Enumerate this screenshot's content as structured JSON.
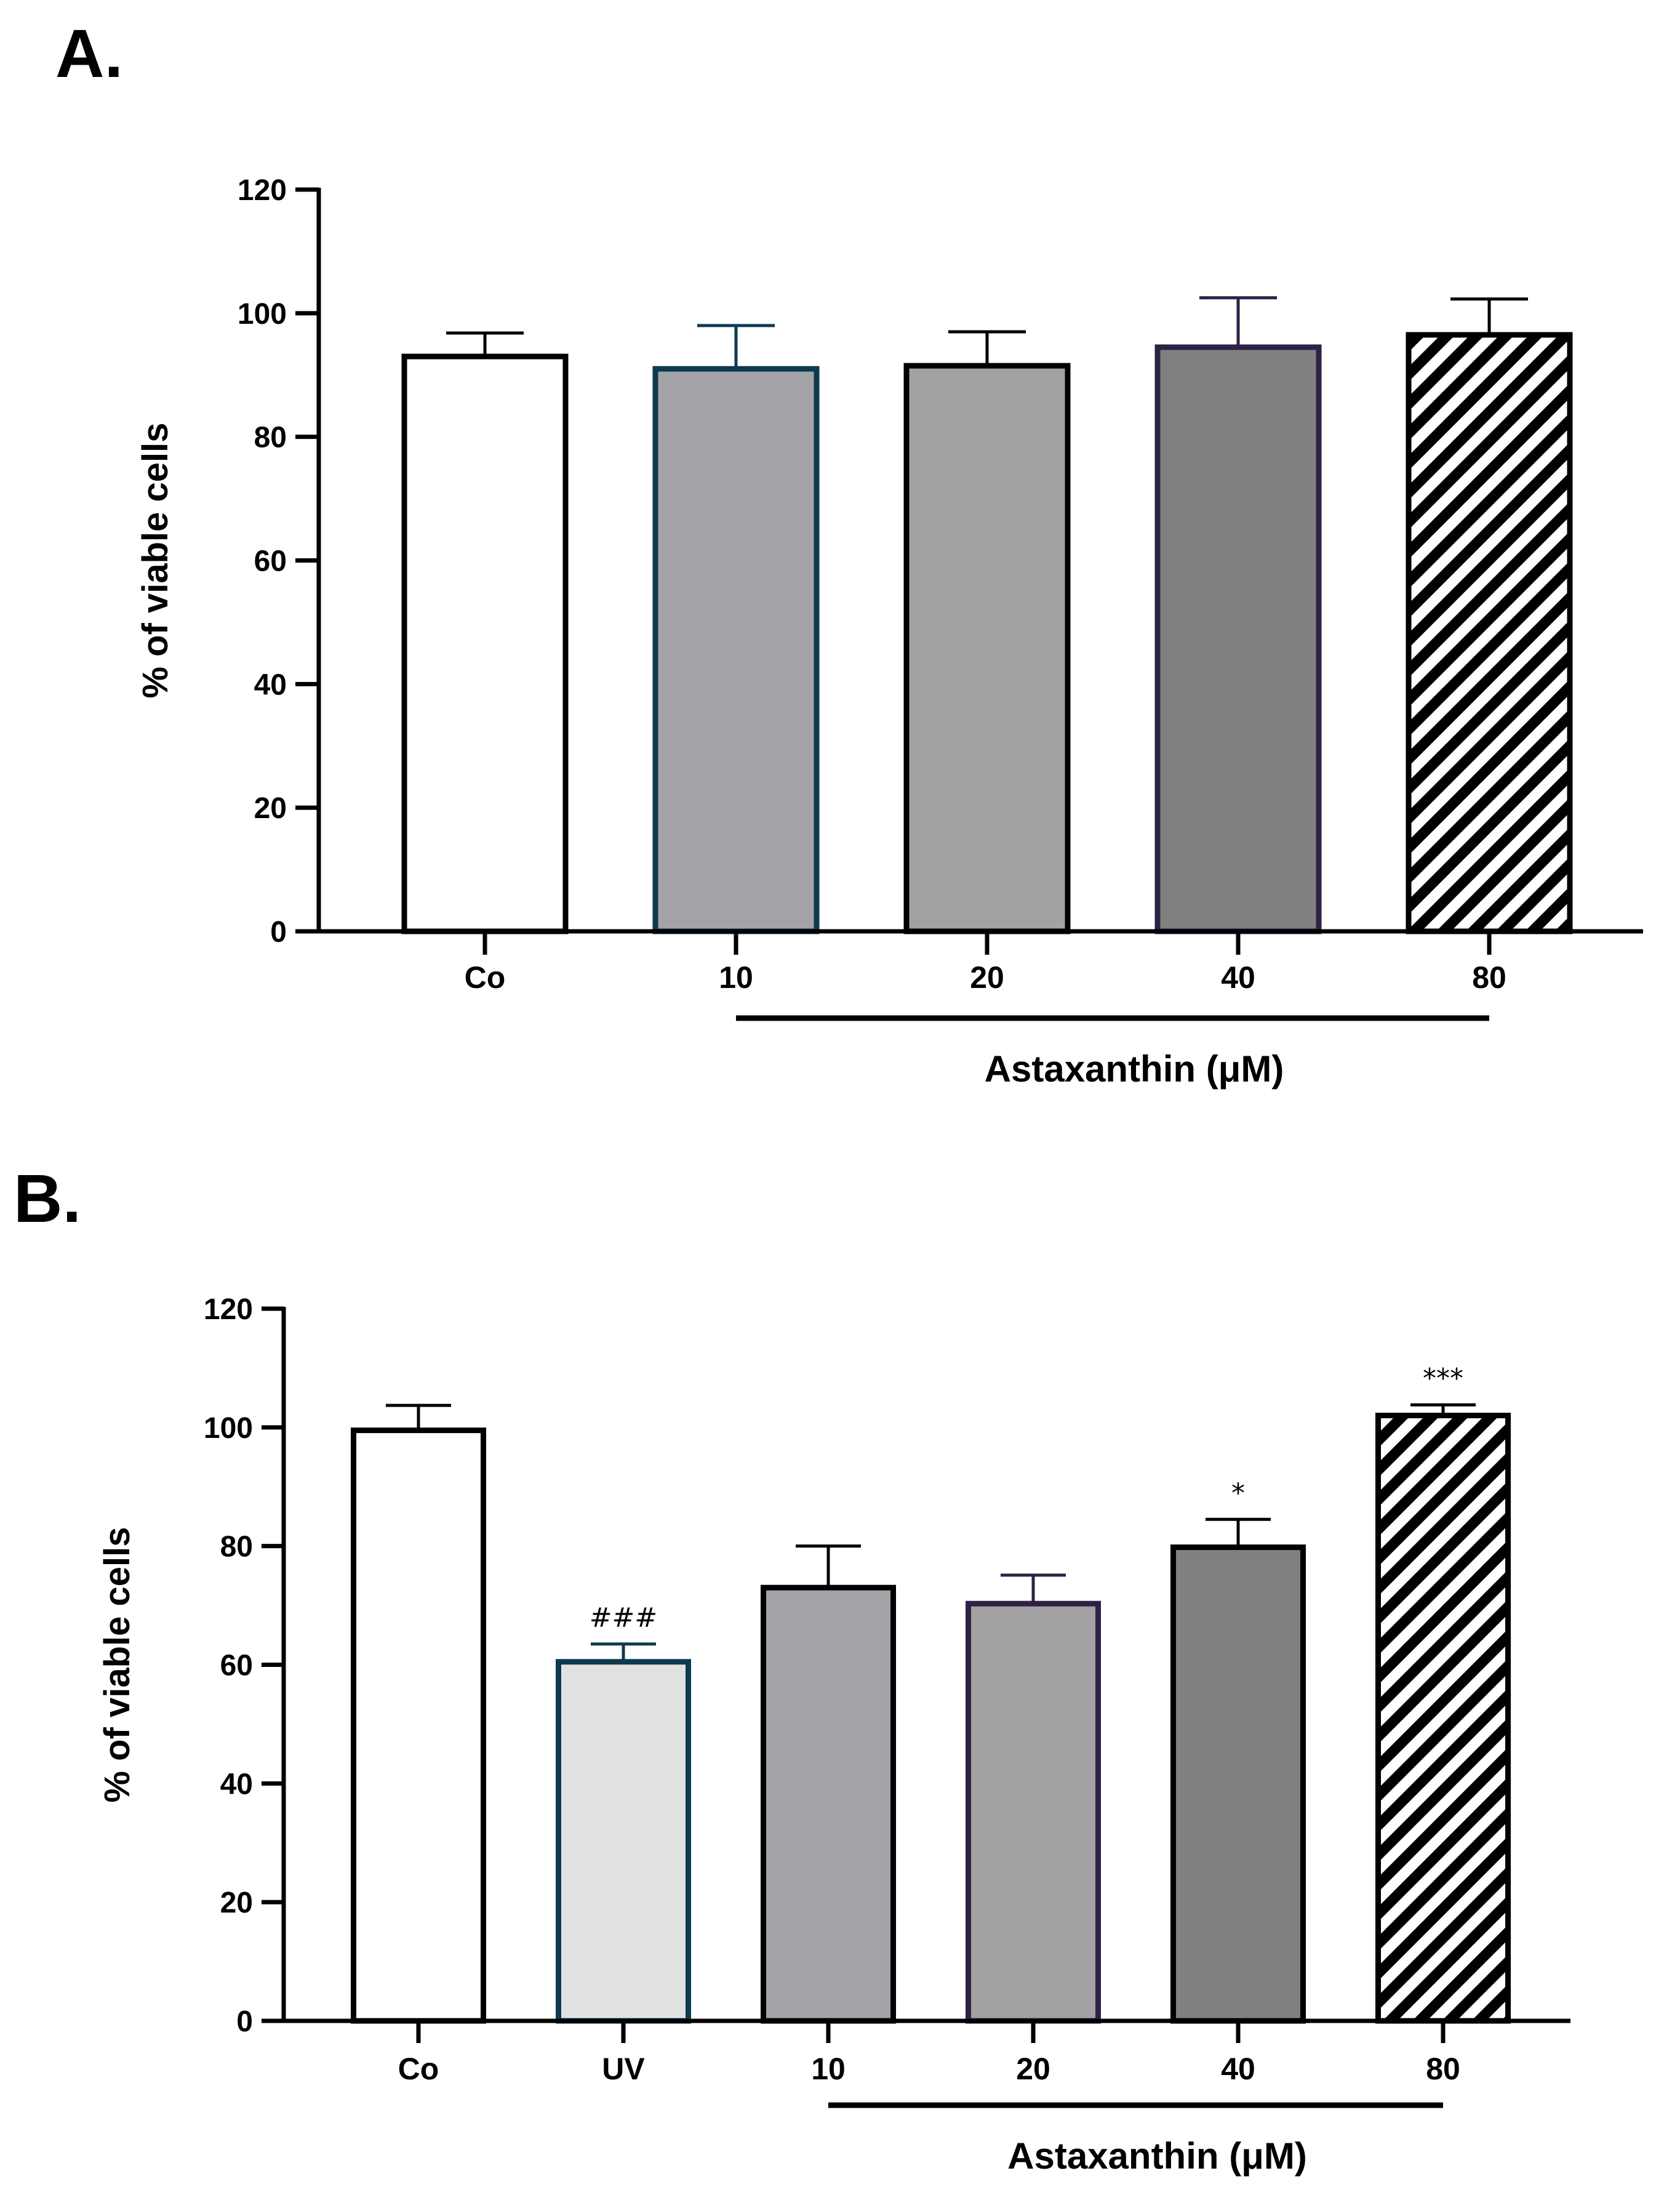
{
  "figure": {
    "panels": [
      {
        "letter": "A."
      },
      {
        "letter": "B."
      }
    ]
  },
  "chart_data": [
    {
      "type": "bar",
      "panel": "A.",
      "ylabel": "% of viable cells",
      "xlabel": "",
      "ylim": [
        0,
        120
      ],
      "yticks": [
        0,
        20,
        40,
        60,
        80,
        100,
        120
      ],
      "categories": [
        "Co",
        "10",
        "20",
        "40",
        "80"
      ],
      "values": [
        93,
        91,
        91.5,
        94.5,
        96.5
      ],
      "errors": [
        3.8,
        7,
        5.5,
        8,
        5.8
      ],
      "annotations": [
        "",
        "",
        "",
        "",
        ""
      ],
      "fills": [
        "#ffffff",
        "#a4a4a8",
        "#a2a2a2",
        "#808080",
        "hatch"
      ],
      "edges": [
        "#000000",
        "#0e3a4f",
        "#000000",
        "#2e2146",
        "#000000"
      ],
      "group": {
        "label": "Astaxanthin (μM)",
        "from": 1,
        "to": 4
      }
    },
    {
      "type": "bar",
      "panel": "B.",
      "ylabel": "% of viable cells",
      "xlabel": "",
      "ylim": [
        0,
        120
      ],
      "yticks": [
        0,
        20,
        40,
        60,
        80,
        100,
        120
      ],
      "categories": [
        "Co",
        "UV",
        "10",
        "20",
        "40",
        "80"
      ],
      "values": [
        99.5,
        60.5,
        73,
        70.3,
        79.8,
        102
      ],
      "errors": [
        4.2,
        3,
        7,
        4.8,
        4.7,
        1.8
      ],
      "annotations": [
        "",
        "###",
        "",
        "",
        "*",
        "***"
      ],
      "fills": [
        "#ffffff",
        "#e2e2e2",
        "#a4a4a8",
        "#a2a2a2",
        "#808080",
        "hatch"
      ],
      "edges": [
        "#000000",
        "#0e3a4f",
        "#000000",
        "#2e2146",
        "#000000",
        "#000000"
      ],
      "group": {
        "label": "Astaxanthin (μM)",
        "from": 2,
        "to": 5
      }
    }
  ]
}
